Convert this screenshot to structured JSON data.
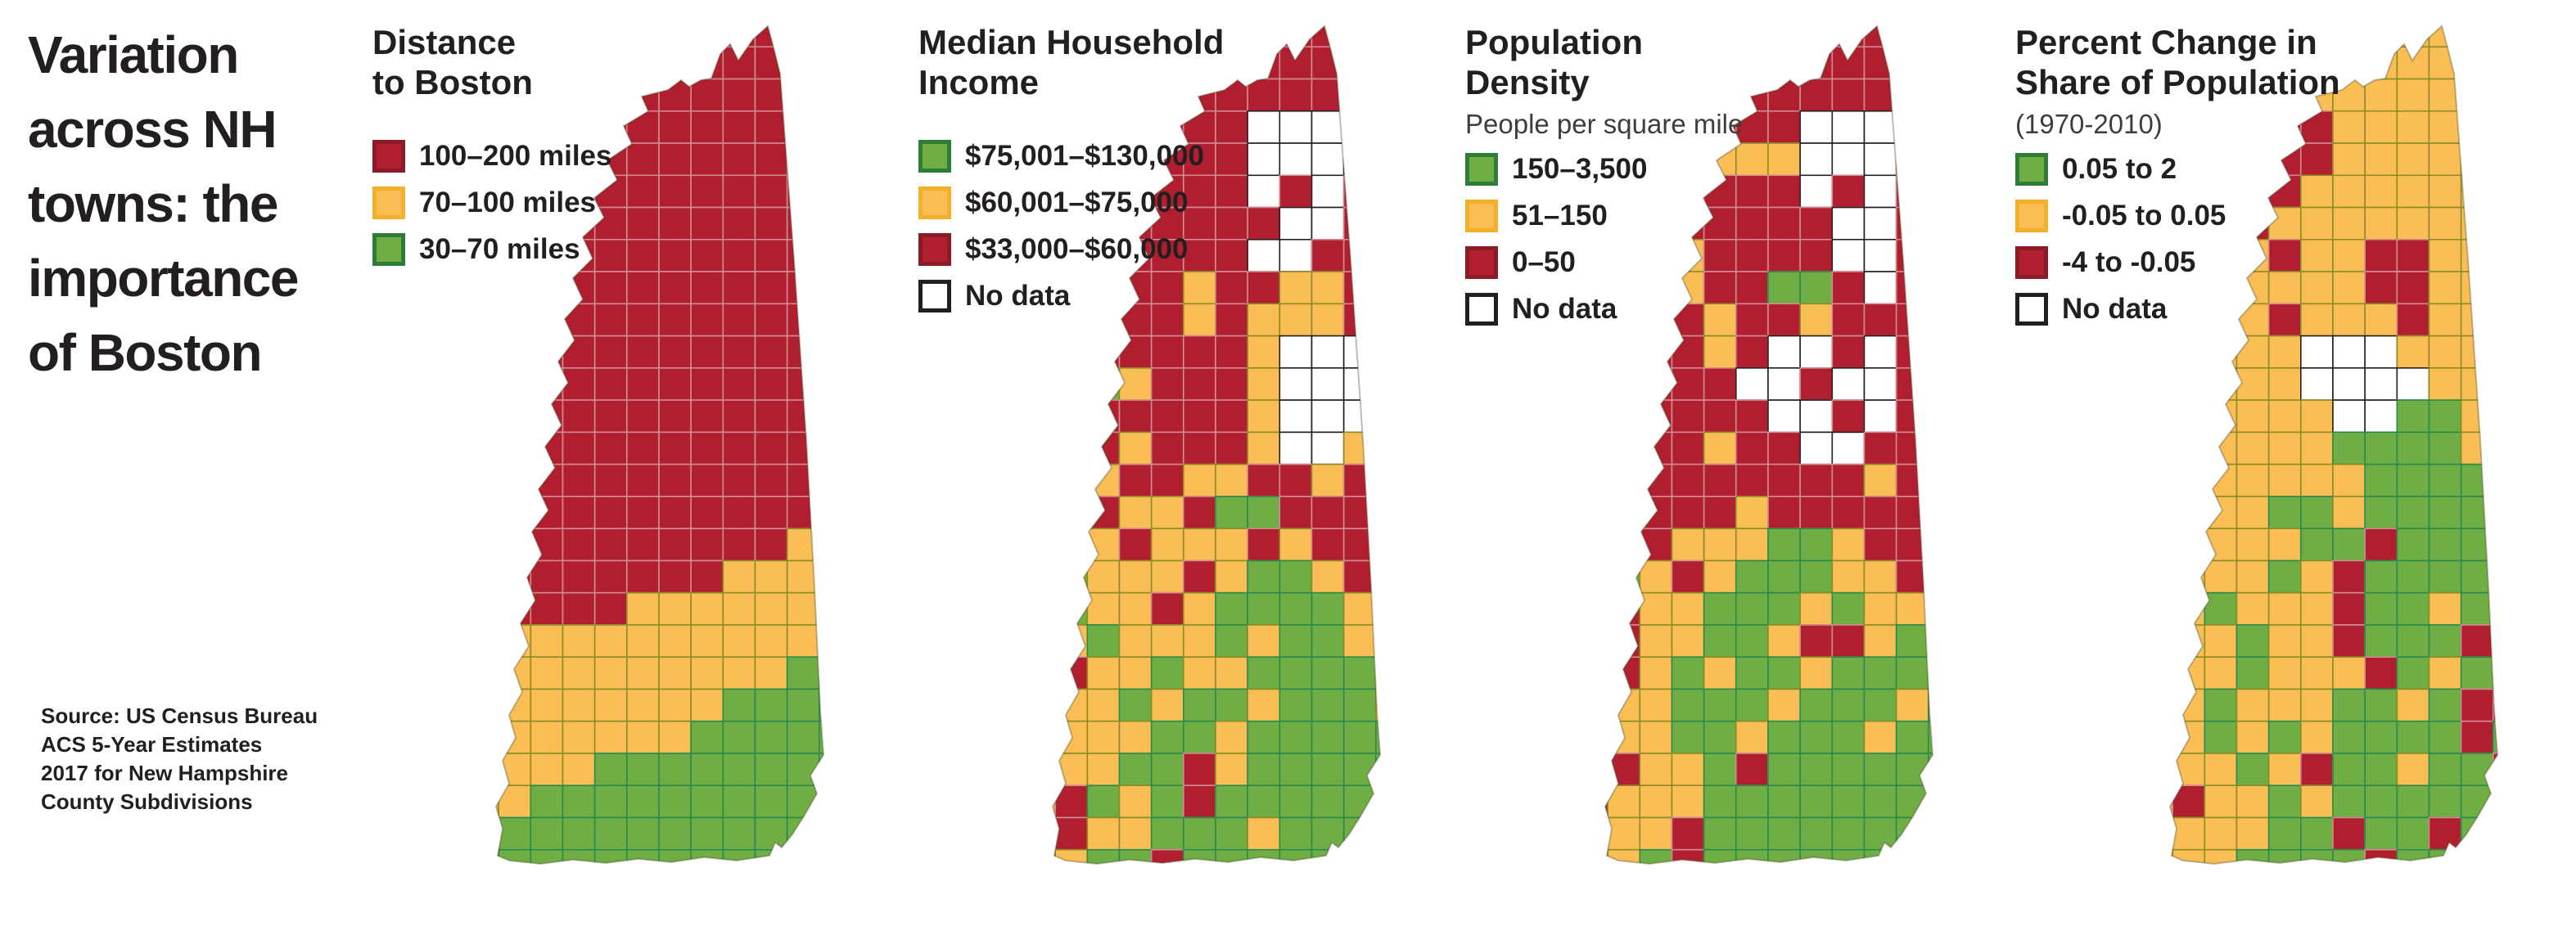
{
  "title": "Variation\nacross NH\ntowns: the\nimportance\nof Boston",
  "source": "Source: US Census Bureau\nACS 5-Year Estimates\n2017 for New Hampshire\nCounty Subdivisions",
  "palette": {
    "R": {
      "fill": "#B01E2F",
      "stroke": "#D08C92"
    },
    "Y": {
      "fill": "#FBBE55",
      "stroke": "#8C8C26"
    },
    "G": {
      "fill": "#6FAE45",
      "stroke": "#2B8A4A"
    },
    "W": {
      "fill": "#FFFFFF",
      "stroke": "#231F20"
    }
  },
  "panels": [
    {
      "title": "Distance\nto Boston",
      "subtitle": "",
      "legend": [
        {
          "label": "100–200 miles",
          "color": "#B01E2F",
          "border": "#8C1B28"
        },
        {
          "label": "70–100 miles",
          "color": "#FBBE55",
          "border": "#F2B02C"
        },
        {
          "label": "30–70 miles",
          "color": "#6FAE45",
          "border": "#2E7D36"
        }
      ],
      "grid": [
        "RRRRRRRRRRRR",
        "RRRRRRRRRRRR",
        "RRRRRRRRRRRR",
        "RRRRRRRRRRRR",
        "RRRRRRRRRRRR",
        "RRRRRRRRRRRR",
        "RRRRRRRRRRRR",
        "RRRRRRRRRRRR",
        "RRRRRRRRRRRR",
        "RRRRRRRRRRRR",
        "RRRRRRRRRRRR",
        "RRRRRRRRRRRR",
        "RRRRRRRRRRRR",
        "RRRRRRRRRRRR",
        "RRRRRRRRRRRR",
        "RRRRRRRRRRRR",
        "RRRRRRRRRRYY",
        "RRRRRRRRYYYY",
        "RRRRRYYYYYYY",
        "YYYYYYYYYYYY",
        "YYYYYYYYYYGG",
        "YYYYYYYYGGGG",
        "YYYYYYYGGGGG",
        "YYYYGGGGGGGG",
        "YYGGGGGGGGGG",
        "YGGGGGGGGGGG",
        "GGGGGGGGGGGG"
      ]
    },
    {
      "title": "Median Household\nIncome",
      "subtitle": "",
      "legend": [
        {
          "label": "$75,001–$130,000",
          "color": "#6FAE45",
          "border": "#2E7D36"
        },
        {
          "label": "$60,001–$75,000",
          "color": "#FBBE55",
          "border": "#F2B02C"
        },
        {
          "label": "$33,000–$60,000",
          "color": "#B01E2F",
          "border": "#8C1B28"
        },
        {
          "label": "No data",
          "color": "#FFFFFF",
          "border": "#231F20"
        }
      ],
      "grid": [
        "RRRRRRRRRRRR",
        "RRRRRRRRRRRR",
        "RRRRRRRRRRRR",
        "RRRRRRRWWWRR",
        "RRRRRRRWWWWR",
        "RRRRRRRWRWRR",
        "RRRRRRRRWWRR",
        "RRRRRRRWWRRR",
        "RRRRRYRRYYRR",
        "RRRRRYRYYYRR",
        "RRRRRRRYWWWR",
        "RYGYRRRYWWWR",
        "RRRRRRRYWWWR",
        "RYRYRRRYWWYR",
        "RGYRRYYRRYRR",
        "GYRYYRGGRRRR",
        "GYYRYYYRYRRR",
        "GGYYYRYGGYRR",
        "YGYYRYGGGGYR",
        "YYGYYYGYGGYY",
        "YRYYGYYGGGGY",
        "YYYGYGGYGGGY",
        "RYYYGGYGGGGG",
        "YYYGGRYGGGGG",
        "YRGYGRGGGGGG",
        "YRYYGGGYGGGG",
        "YYGGRGGGGGGG"
      ]
    },
    {
      "title": "Population\nDensity",
      "subtitle": "People per square mile",
      "legend": [
        {
          "label": "150–3,500",
          "color": "#6FAE45",
          "border": "#2E7D36"
        },
        {
          "label": "51–150",
          "color": "#FBBE55",
          "border": "#F2B02C"
        },
        {
          "label": "0–50",
          "color": "#B01E2F",
          "border": "#8C1B28"
        },
        {
          "label": "No data",
          "color": "#FFFFFF",
          "border": "#231F20"
        }
      ],
      "grid": [
        "RRRRRRRRRRRR",
        "RRRRRRRRRRRR",
        "RRRRRRRRRRRR",
        "RRRRRRRWWWRR",
        "RRYYYYYWWWRR",
        "RRRRRRRWRWRR",
        "RRRRRRRRWWRR",
        "RRRYRRRRWWRR",
        "RRRYRRGGRWRR",
        "RRRRYRRYRRRR",
        "RRRRYRWWRWRR",
        "RRRRRWWRWWRR",
        "RRRRRRWWRWRR",
        "RRRRYRRWWRRR",
        "YYRRRRRRRYRR",
        "YGRRRYRRRRRR",
        "GGRYYYGGYRRR",
        "RGYRYGGGYYRR",
        "RRYYGGGYGYYR",
        "RRYYGGYRRYGY",
        "RRYGYGGYGGGY",
        "RYYGGGYGGGYG",
        "RYYGGYGGGYGG",
        "RRYYGRGGGGGG",
        "RYYYGGGGGGGG",
        "YYYRGGGGGGGG",
        "YYGRGGGGGGGG"
      ]
    },
    {
      "title": "Percent Change in\nShare of Population",
      "subtitle": "(1970-2010)",
      "legend": [
        {
          "label": "0.05 to 2",
          "color": "#6FAE45",
          "border": "#2E7D36"
        },
        {
          "label": "-0.05 to 0.05",
          "color": "#FBBE55",
          "border": "#F2B02C"
        },
        {
          "label": "-4 to -0.05",
          "color": "#B01E2F",
          "border": "#8C1B28"
        },
        {
          "label": "No data",
          "color": "#FFFFFF",
          "border": "#231F20"
        }
      ],
      "grid": [
        "YYYYYYYYYYYY",
        "YYYYYYYYYYYY",
        "YYYYYYYYYYYY",
        "YYYYRRYYYYYY",
        "YYYYRRYYYYYY",
        "YYYRRYYYYYYY",
        "YYYRYYYYYYYY",
        "YYYYRYYRRYYY",
        "YYYYYYYRRYYY",
        "YYYYRYYYRYYY",
        "YYYYYWWWYYYY",
        "YYYYYWWWWYYY",
        "YYYYYYWWGGYY",
        "YYYYYYGGGGYY",
        "YRYYYYYGGGGG",
        "YYYYGGYGGGGG",
        "RYYYYGGRGGGG",
        "RYYYGYRGGGGG",
        "YYGYYYRGGYGR",
        "YYYGYYRGGGRR",
        "RYYGYYYRGYGR",
        "RYGYYYGGYGRR",
        "YYGYGYGGGGRG",
        "YYYGYRGGYGGR",
        "YRYYGYGGGGGR",
        "YYYYGGRGGRGG",
        "YYYGGGGRGGGG"
      ]
    }
  ]
}
